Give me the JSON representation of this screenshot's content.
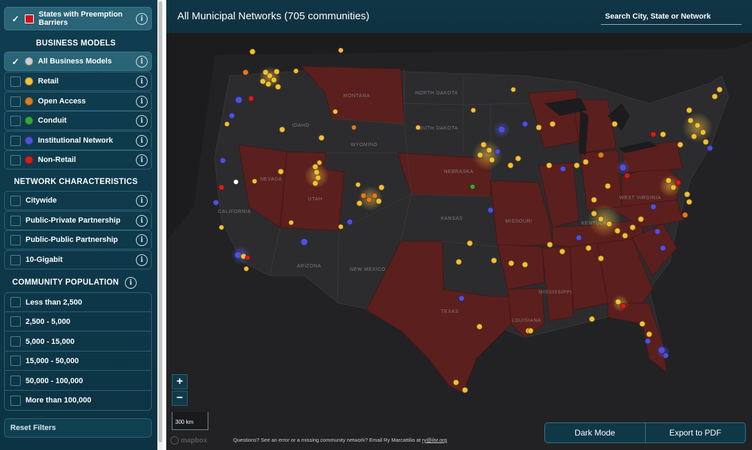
{
  "colors": {
    "retail": "#f2c038",
    "open_access": "#e07a1e",
    "conduit": "#3aa43a",
    "institutional": "#4e52d8",
    "non_retail": "#d21e1e",
    "all": "#cfcfcf",
    "preemption_state": "#5b1f1d",
    "preemption_swatch": "#d40e14"
  },
  "sidebar": {
    "preemption": {
      "label": "States with Preemption Barriers",
      "checked": true,
      "info_icon": "info-icon"
    },
    "business_models": {
      "title": "BUSINESS MODELS",
      "items": [
        {
          "label": "All Business Models",
          "checked": true,
          "color": "#cfcfcf"
        },
        {
          "label": "Retail",
          "checked": false,
          "color": "#f2c038"
        },
        {
          "label": "Open Access",
          "checked": false,
          "color": "#e07a1e"
        },
        {
          "label": "Conduit",
          "checked": false,
          "color": "#3aa43a"
        },
        {
          "label": "Institutional Network",
          "checked": false,
          "color": "#4e52d8"
        },
        {
          "label": "Non-Retail",
          "checked": false,
          "color": "#d21e1e"
        }
      ]
    },
    "network_characteristics": {
      "title": "NETWORK CHARACTERISTICS",
      "items": [
        {
          "label": "Citywide"
        },
        {
          "label": "Public-Private Partnership"
        },
        {
          "label": "Public-Public Partnership"
        },
        {
          "label": "10-Gigabit"
        }
      ]
    },
    "community_population": {
      "title": "COMMUNITY POPULATION",
      "items": [
        {
          "label": "Less than 2,500"
        },
        {
          "label": "2,500 - 5,000"
        },
        {
          "label": "5,000 - 15,000"
        },
        {
          "label": "15,000 - 50,000"
        },
        {
          "label": "50,000 - 100,000"
        },
        {
          "label": "More than 100,000"
        }
      ]
    },
    "reset_label": "Reset Filters",
    "checkmark": "✓"
  },
  "map": {
    "title": "All Municipal Networks (705 communities)",
    "search_placeholder": "Search City, State or Network",
    "zoom_in": "+",
    "zoom_out": "−",
    "scale_label": "300 km",
    "logo_text": "mapbox",
    "footer_text": "Questions? See an error or a missing community network? Email Ry Marcattilio at ",
    "footer_email": "ry@ilsr.org",
    "dark_mode_label": "Dark Mode",
    "export_label": "Export to PDF",
    "state_labels": [
      "MONTANA",
      "NORTH DAKOTA",
      "SOUTH DAKOTA",
      "IDAHO",
      "WYOMING",
      "NEBRASKA",
      "NEVADA",
      "UTAH",
      "CALIFORNIA",
      "KANSAS",
      "MISSOURI",
      "ARIZONA",
      "NEW MEXICO",
      "TEXAS",
      "LOUISIANA",
      "MISSISSIPPI",
      "KENTUCKY",
      "WEST VIRGINIA"
    ]
  }
}
